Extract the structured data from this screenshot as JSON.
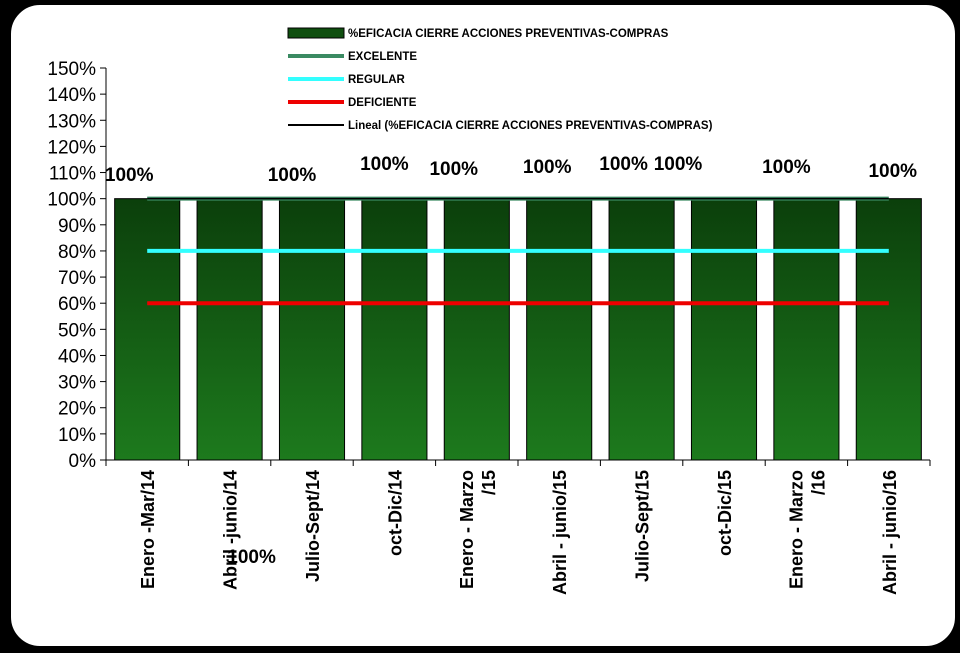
{
  "chart_data": {
    "type": "bar",
    "categories": [
      [
        "Enero -Mar/14"
      ],
      [
        "Abril -junio/14"
      ],
      [
        "Julio-Sept/14"
      ],
      [
        "oct-Dic/14"
      ],
      [
        "Enero - Marzo",
        "/15"
      ],
      [
        "Abril - junio/15"
      ],
      [
        "Julio-Sept/15"
      ],
      [
        "oct-Dic/15"
      ],
      [
        "Enero - Marzo",
        "/16"
      ],
      [
        "Abril - junio/16"
      ]
    ],
    "series": [
      {
        "name": "%EFICACIA CIERRE ACCIONES PREVENTIVAS-COMPRAS",
        "values": [
          1,
          1,
          1,
          1,
          1,
          1,
          1,
          1,
          1,
          1
        ],
        "color": "#1d7a1d"
      }
    ],
    "data_labels": [
      "100%",
      "100%",
      "100%",
      "100%",
      "100%",
      "100%",
      "100%",
      "100%",
      "100%",
      "100%"
    ],
    "reference_lines": [
      {
        "name": "EXCELENTE",
        "value": 1.0,
        "color": "#3a8a62"
      },
      {
        "name": "REGULAR",
        "value": 0.8,
        "color": "#33ffff"
      },
      {
        "name": "DEFICIENTE",
        "value": 0.6,
        "color": "#ee0000"
      }
    ],
    "trendline": {
      "name": "Lineal (%EFICACIA CIERRE ACCIONES PREVENTIVAS-COMPRAS)",
      "value": 1.0,
      "color": "#000000"
    },
    "ylim": [
      0,
      1.5
    ],
    "yticks": [
      "0%",
      "10%",
      "20%",
      "30%",
      "40%",
      "50%",
      "60%",
      "70%",
      "80%",
      "90%",
      "100%",
      "110%",
      "120%",
      "130%",
      "140%",
      "150%"
    ],
    "legend_position": "top",
    "grid": false
  }
}
